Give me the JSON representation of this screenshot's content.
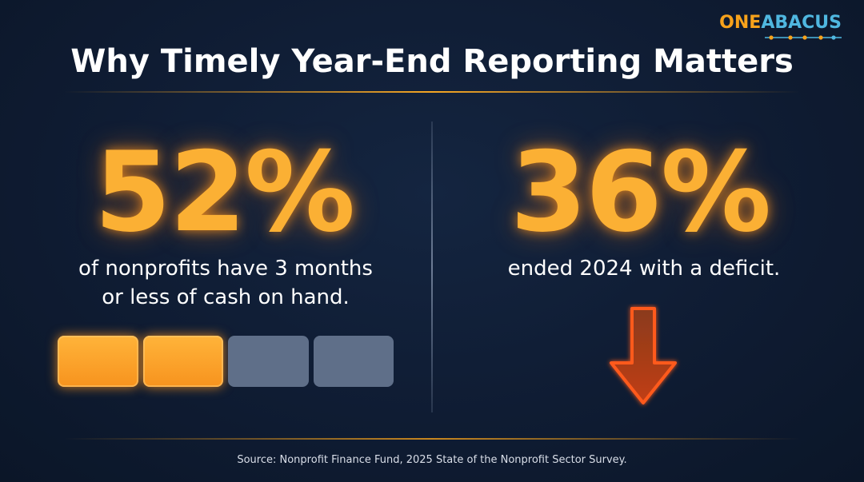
{
  "brand": {
    "part1": "ONE",
    "part2": "ABACUS"
  },
  "title": "Why Timely Year-End Reporting Matters",
  "stats": [
    {
      "value": "52%",
      "lines": [
        "of nonprofits have 3 months",
        "or less of cash on hand."
      ],
      "bar": {
        "segments": 4,
        "filled_fraction": 0.5
      }
    },
    {
      "value": "36%",
      "lines": [
        "ended 2024 with a deficit."
      ],
      "icon": "down-arrow-icon"
    }
  ],
  "source": "Source: Nonprofit Finance Fund, 2025 State of the Nonprofit Sector Survey.",
  "colors": {
    "accent": "#fbb034",
    "background": "#0f1c33",
    "bar_empty": "#5f6f89",
    "arrow": "#ff5a1f",
    "logo_blue": "#4fb7e0"
  }
}
